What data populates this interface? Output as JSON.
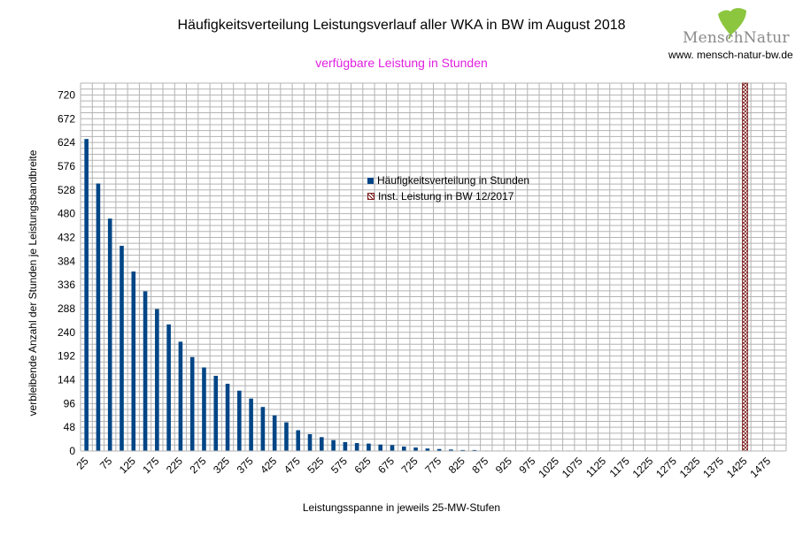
{
  "chart_data": {
    "type": "bar",
    "title": "Häufigkeitsverteilung Leistungsverlauf aller WKA in BW im August 2018",
    "subtitle": "verfügbare Leistung in Stunden",
    "xlabel": "Leistungsspanne in jeweils 25-MW-Stufen",
    "ylabel": "verbleibende Anzahl der Stunden je Leistungsbandbreite",
    "ylim": [
      0,
      744
    ],
    "yticks": [
      0,
      48,
      96,
      144,
      192,
      240,
      288,
      336,
      384,
      432,
      480,
      528,
      576,
      624,
      672,
      720
    ],
    "xtick_labels": [
      "25",
      "75",
      "125",
      "175",
      "225",
      "275",
      "325",
      "375",
      "425",
      "475",
      "525",
      "575",
      "625",
      "675",
      "725",
      "775",
      "825",
      "875",
      "925",
      "975",
      "1025",
      "1075",
      "1125",
      "1175",
      "1225",
      "1275",
      "1325",
      "1375",
      "1425",
      "1475"
    ],
    "categories": [
      25,
      50,
      75,
      100,
      125,
      150,
      175,
      200,
      225,
      250,
      275,
      300,
      325,
      350,
      375,
      400,
      425,
      450,
      475,
      500,
      525,
      550,
      575,
      600,
      625,
      650,
      675,
      700,
      725,
      750,
      775,
      800,
      825,
      850,
      875,
      900,
      925,
      950,
      975,
      1000,
      1025,
      1050,
      1075,
      1100,
      1125,
      1150,
      1175,
      1200,
      1225,
      1250,
      1275,
      1300,
      1325,
      1350,
      1375,
      1400,
      1425,
      1450,
      1475,
      1500
    ],
    "grid": true,
    "legend_position": "center",
    "series": [
      {
        "name": "Häufigkeitsverteilung in Stunden",
        "color": "#004586",
        "values": [
          631,
          541,
          470,
          415,
          363,
          323,
          287,
          256,
          221,
          190,
          169,
          152,
          136,
          122,
          106,
          89,
          72,
          58,
          42,
          34,
          28,
          22,
          18,
          16,
          15,
          13,
          12,
          9,
          7,
          5,
          4,
          3,
          2,
          2,
          1,
          1,
          1,
          1,
          1,
          1,
          1,
          1,
          1,
          1,
          0,
          0,
          0,
          0,
          0,
          0,
          0,
          0,
          0,
          0,
          0,
          0,
          0,
          0,
          0,
          0
        ]
      },
      {
        "name": "Inst. Leistung in BW 12/2017",
        "color": "#7a1a1a",
        "x": 1425,
        "value": 744
      }
    ]
  },
  "logo": {
    "name": "MenschNatur",
    "url": "www. mensch-natur-bw.de"
  }
}
